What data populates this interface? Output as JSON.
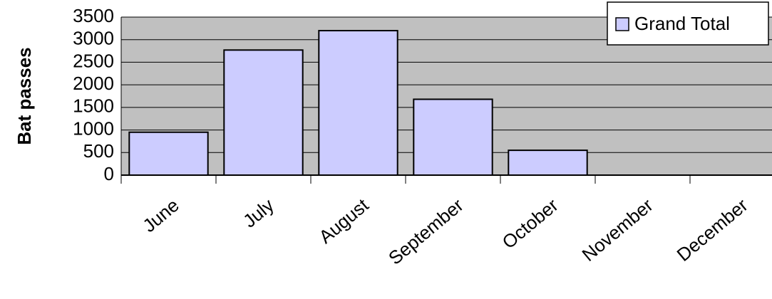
{
  "chart_data": {
    "type": "bar",
    "categories": [
      "June",
      "July",
      "August",
      "September",
      "October",
      "November",
      "December"
    ],
    "series": [
      {
        "name": "Grand Total",
        "color": "#ccccff",
        "values": [
          950,
          2770,
          3200,
          1680,
          550,
          null,
          null
        ]
      }
    ],
    "y_label": "Bat passes",
    "ylim": [
      0,
      3500
    ],
    "yticks": [
      0,
      500,
      1000,
      1500,
      2000,
      2500,
      3000,
      3500
    ],
    "grid": true,
    "plot_background": "#c0c0c0",
    "legend": "top-right"
  }
}
